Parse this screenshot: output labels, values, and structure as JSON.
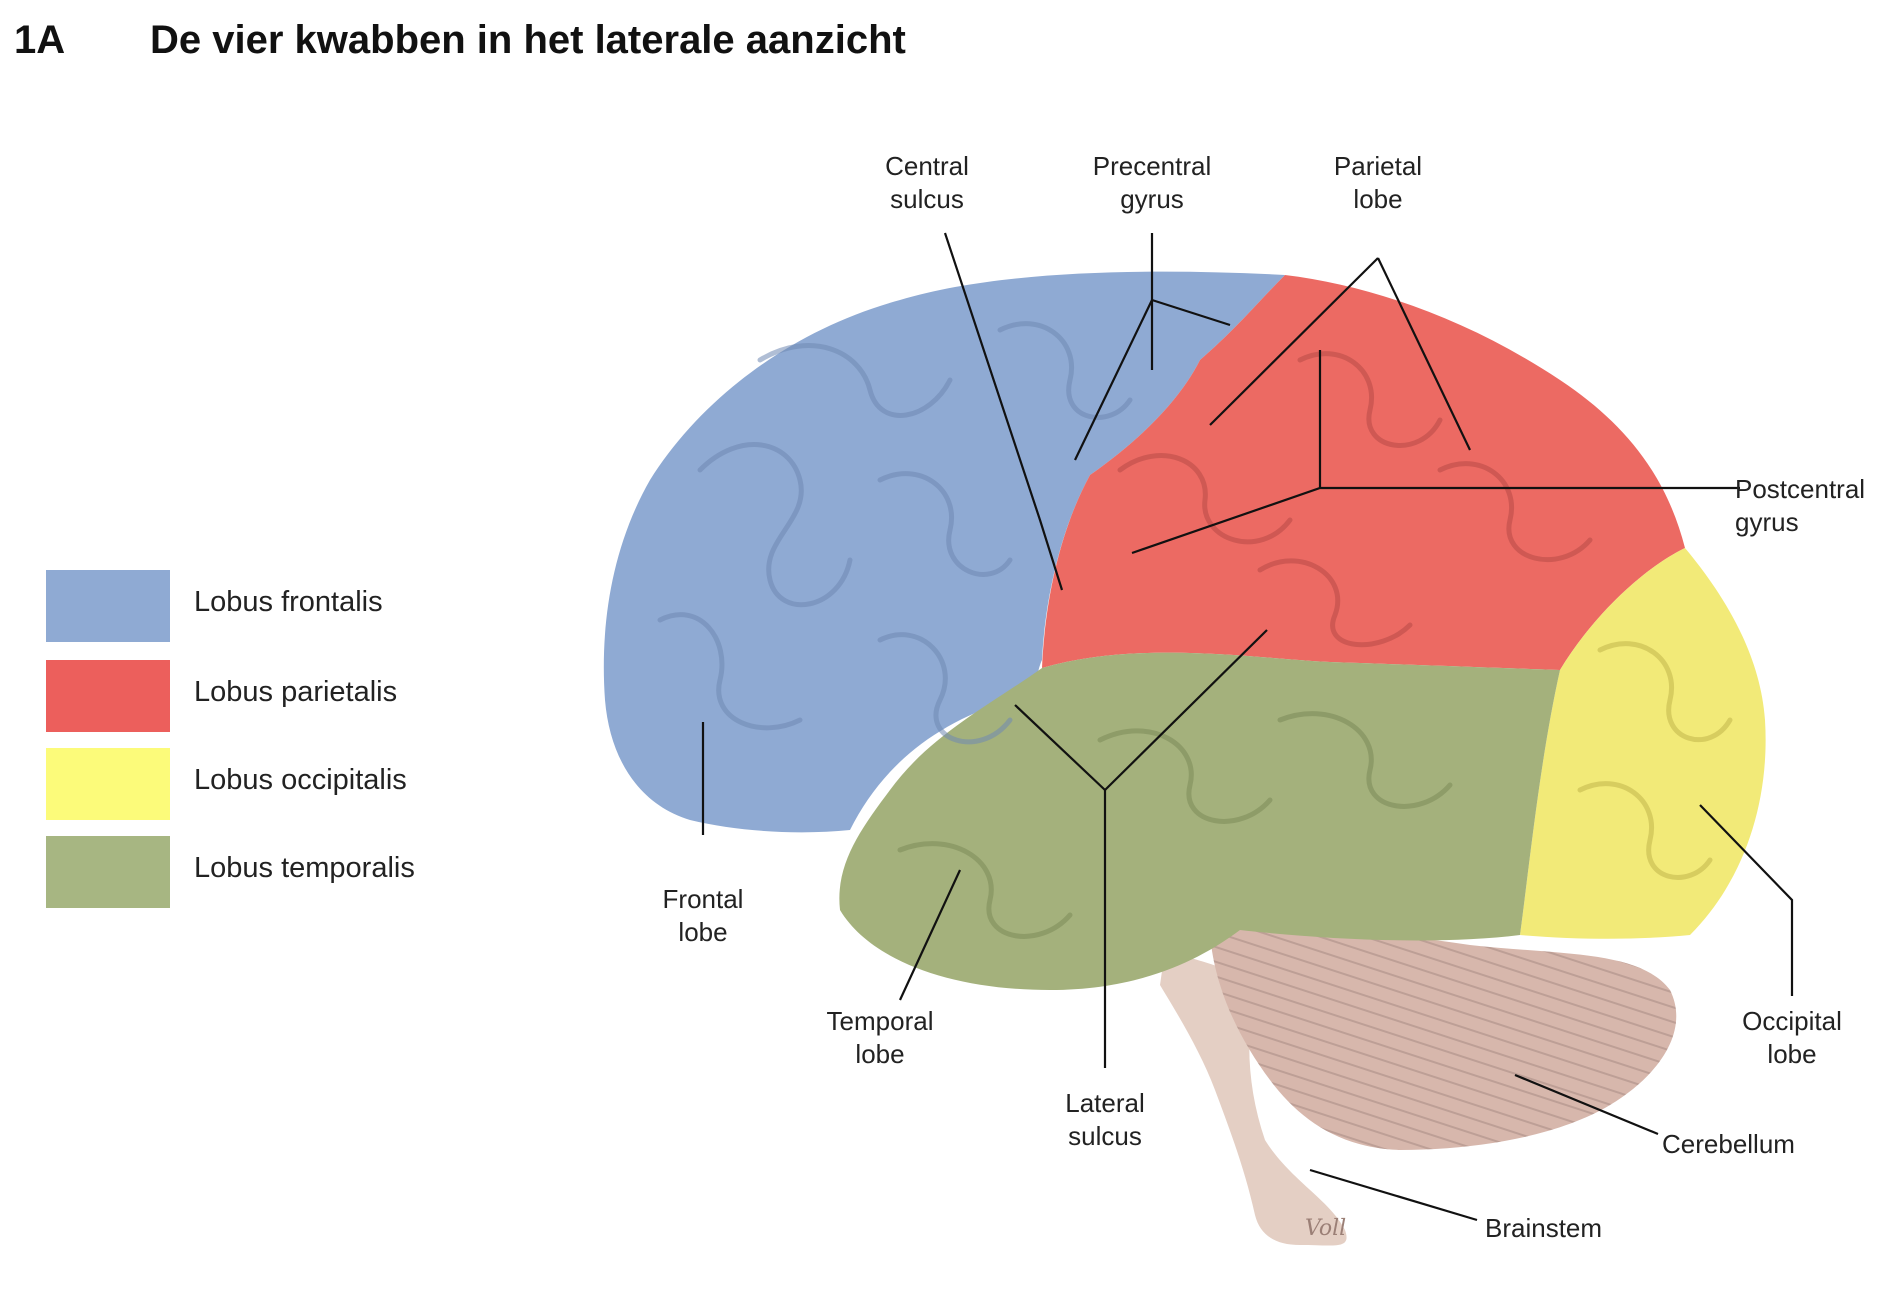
{
  "heading": {
    "number": "1A",
    "title": "De vier kwabben in het laterale aanzicht"
  },
  "legend": [
    {
      "label": "Lobus frontalis",
      "color": "#8faad3"
    },
    {
      "label": "Lobus parietalis",
      "color": "#ec5f5c"
    },
    {
      "label": "Lobus occipitalis",
      "color": "#fcfb7a"
    },
    {
      "label": "Lobus temporalis",
      "color": "#a7b682"
    }
  ],
  "lobe_colors": {
    "frontal": "#8faad3",
    "parietal": "#ec6a63",
    "occipital": "#f2ea78",
    "temporal": "#a4b17c",
    "cerebellum": "#d7b7ac",
    "brainstem": "#e4cfc4"
  },
  "callouts": {
    "central_sulcus": "Central\nsulcus",
    "precentral_gyrus": "Precentral\ngyrus",
    "parietal_lobe": "Parietal\nlobe",
    "postcentral_gyrus": "Postcentral\ngyrus",
    "frontal_lobe": "Frontal\nlobe",
    "temporal_lobe": "Temporal\nlobe",
    "lateral_sulcus": "Lateral\nsulcus",
    "occipital_lobe": "Occipital\nlobe",
    "cerebellum": "Cerebellum",
    "brainstem": "Brainstem"
  },
  "signature": "Voll"
}
